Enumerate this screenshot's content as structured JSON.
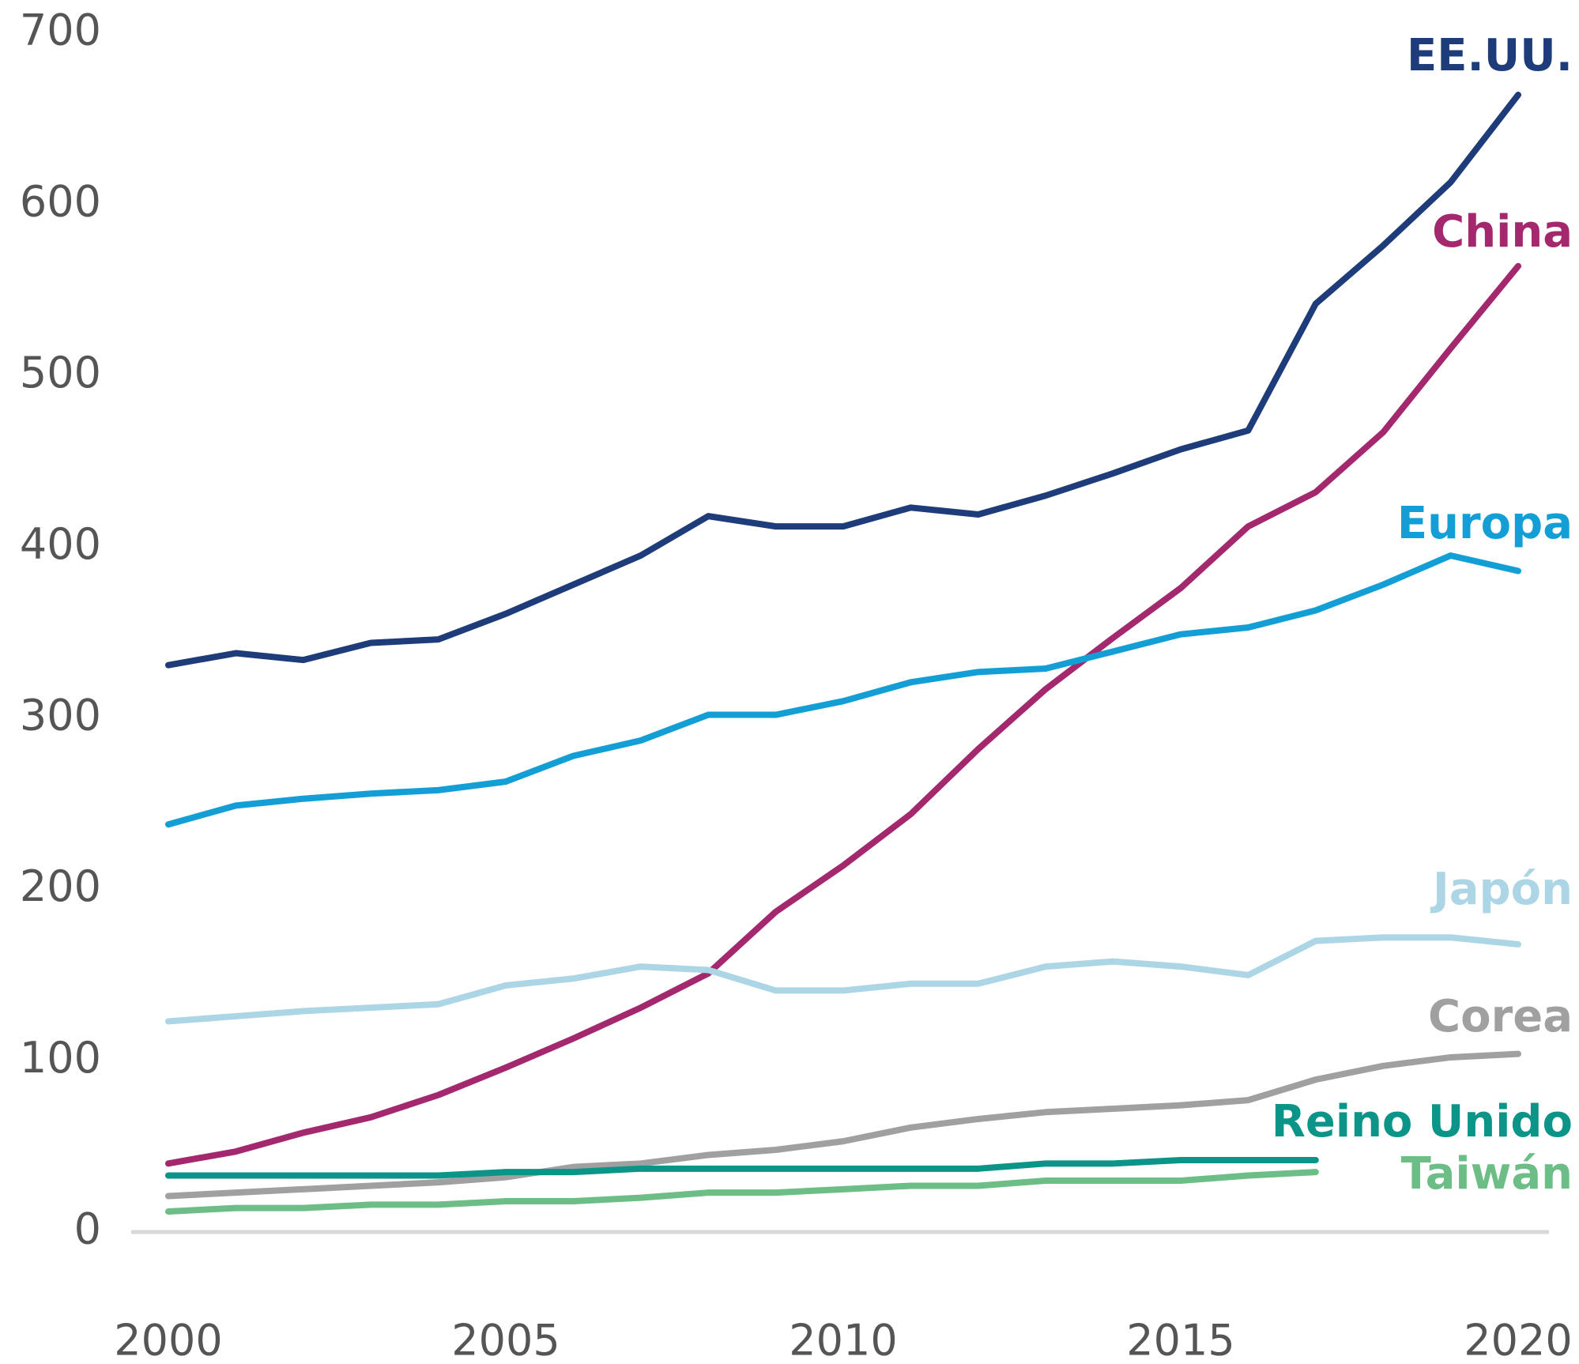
{
  "chart_data": {
    "type": "line",
    "x": [
      2000,
      2001,
      2002,
      2003,
      2004,
      2005,
      2006,
      2007,
      2008,
      2009,
      2010,
      2011,
      2012,
      2013,
      2014,
      2015,
      2016,
      2017,
      2018,
      2019,
      2020
    ],
    "xlim": [
      2000,
      2020
    ],
    "xticks": [
      2000,
      2005,
      2010,
      2015,
      2020
    ],
    "ylim": [
      0,
      700
    ],
    "yticks": [
      0,
      100,
      200,
      300,
      400,
      500,
      600,
      700
    ],
    "series": [
      {
        "name": "EE.UU.",
        "color": "#1f3c7a",
        "values": [
          331,
          338,
          334,
          344,
          346,
          361,
          378,
          395,
          418,
          412,
          412,
          423,
          419,
          430,
          443,
          457,
          468,
          542,
          576,
          613,
          664
        ]
      },
      {
        "name": "China",
        "color": "#a3286e",
        "values": [
          40,
          47,
          58,
          67,
          80,
          96,
          113,
          131,
          151,
          187,
          214,
          244,
          282,
          317,
          347,
          376,
          412,
          432,
          467,
          516,
          564
        ]
      },
      {
        "name": "Europa",
        "color": "#139fd6",
        "values": [
          238,
          249,
          253,
          256,
          258,
          263,
          278,
          287,
          302,
          302,
          310,
          321,
          327,
          329,
          339,
          349,
          353,
          363,
          378,
          395,
          386
        ]
      },
      {
        "name": "Japón",
        "color": "#acd6e5",
        "values": [
          123,
          126,
          129,
          131,
          133,
          144,
          148,
          155,
          153,
          141,
          141,
          145,
          145,
          155,
          158,
          155,
          150,
          170,
          172,
          172,
          168
        ]
      },
      {
        "name": "Corea",
        "color": "#a0a0a0",
        "values": [
          21,
          23,
          25,
          27,
          29,
          32,
          38,
          40,
          45,
          48,
          53,
          61,
          66,
          70,
          72,
          74,
          77,
          89,
          97,
          102,
          104
        ]
      },
      {
        "name": "Reino Unido",
        "color": "#0b9488",
        "values": [
          33,
          33,
          33,
          33,
          33,
          35,
          35,
          37,
          37,
          37,
          37,
          37,
          37,
          40,
          40,
          42,
          42,
          42,
          null,
          null,
          null
        ]
      },
      {
        "name": "Taiwán",
        "color": "#6cbd86",
        "values": [
          12,
          14,
          14,
          16,
          16,
          18,
          18,
          20,
          23,
          23,
          25,
          27,
          27,
          30,
          30,
          30,
          33,
          35,
          null,
          null,
          null
        ]
      }
    ]
  }
}
